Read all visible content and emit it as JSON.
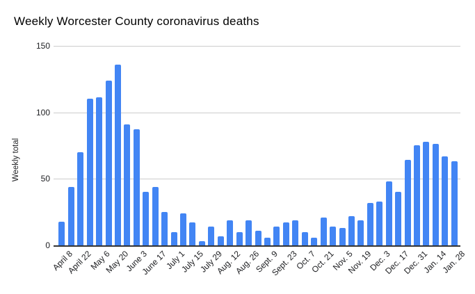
{
  "chart": {
    "title": "Weekly Worcester County coronavirus deaths",
    "y_axis_title": "Weekly total",
    "colors": {
      "bar": "#4285F4",
      "gridline": "#cccccc",
      "axis_line": "#333333",
      "title_text": "#000000",
      "tick_text": "#202124",
      "background": "#ffffff"
    }
  },
  "chart_data": {
    "type": "bar",
    "title": "Weekly Worcester County coronavirus deaths",
    "xlabel": "",
    "ylabel": "Weekly total",
    "ylim": [
      0,
      150
    ],
    "yticks": [
      0,
      50,
      100,
      150
    ],
    "grid": true,
    "legend": "none",
    "n_bars": 43,
    "x_tick_interval": 2,
    "tick_labels": [
      "April 8",
      "April 22",
      "May 6",
      "May 20",
      "June 3",
      "June 17",
      "July 1",
      "July 15",
      "July 29",
      "Aug. 12",
      "Aug. 26",
      "Sept. 9",
      "Sept. 23",
      "Oct. 7",
      "Oct. 21",
      "Nov. 5",
      "Nov. 19",
      "Dec. 3",
      "Dec. 17",
      "Dec. 31",
      "Jan. 14",
      "Jan. 28"
    ],
    "values": [
      18,
      44,
      70,
      110,
      111,
      124,
      136,
      91,
      87,
      40,
      44,
      25,
      10,
      24,
      17,
      3,
      14,
      7,
      19,
      10,
      19,
      11,
      6,
      14,
      17,
      19,
      10,
      6,
      21,
      14,
      13,
      22,
      19,
      32,
      33,
      48,
      40,
      64,
      75,
      78,
      76,
      67,
      63
    ]
  }
}
